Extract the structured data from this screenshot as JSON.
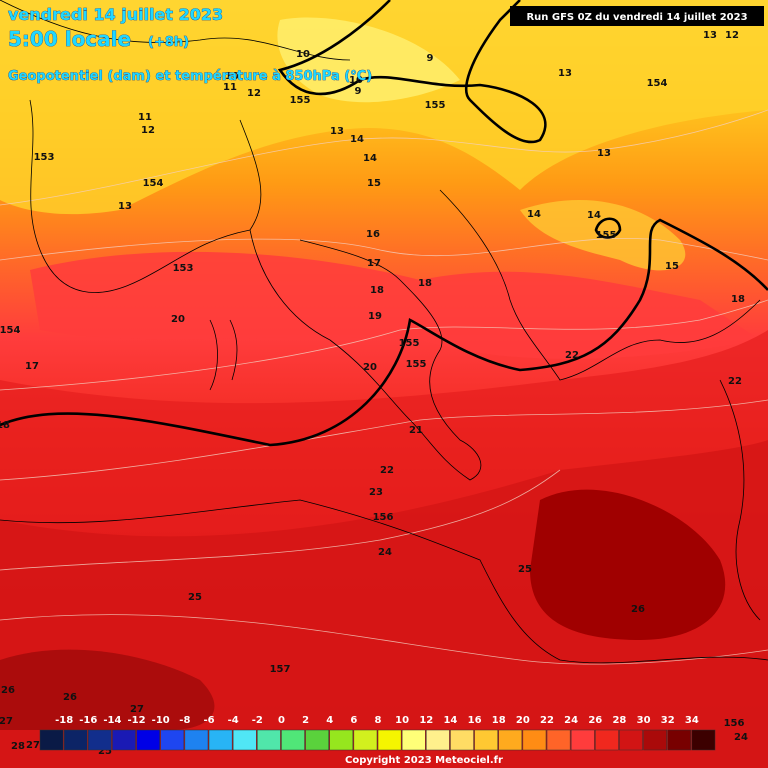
{
  "header": {
    "date": "vendredi 14 juillet 2023",
    "time": "5:00 locale",
    "offset": "(+8h)",
    "subtitle": "Geopotentiel (dam) et température à 850hPa (°C)",
    "run": "Run GFS 0Z du vendredi 14 juillet 2023"
  },
  "contour_labels": [
    "10",
    "9",
    "10",
    "9",
    "10",
    "11",
    "12",
    "155",
    "155",
    "13",
    "154",
    "13",
    "12",
    "11",
    "12",
    "153",
    "154",
    "13",
    "13",
    "14",
    "14",
    "15",
    "13",
    "14",
    "14",
    "155",
    "15",
    "16",
    "17",
    "18",
    "18",
    "19",
    "153",
    "20",
    "154",
    "17",
    "18",
    "155",
    "155",
    "20",
    "22",
    "22",
    "18",
    "21",
    "22",
    "23",
    "156",
    "24",
    "25",
    "25",
    "26",
    "157",
    "26",
    "26",
    "27",
    "27",
    "156",
    "24",
    "28",
    "27",
    "25"
  ],
  "legend": {
    "values": [
      "-18",
      "-16",
      "-14",
      "-12",
      "-10",
      "-8",
      "-6",
      "-4",
      "-2",
      "0",
      "2",
      "4",
      "6",
      "8",
      "10",
      "12",
      "14",
      "16",
      "18",
      "20",
      "22",
      "24",
      "26",
      "28",
      "30",
      "32",
      "34"
    ],
    "colors": [
      "#0a1a46",
      "#0c2466",
      "#122e8c",
      "#1a1ab4",
      "#0000e6",
      "#1e46f0",
      "#1e82f0",
      "#28b4f5",
      "#50e6f5",
      "#50e6aa",
      "#50e678",
      "#5ad23c",
      "#96e61e",
      "#d2f01e",
      "#f5f500",
      "#ffff78",
      "#fff08c",
      "#ffdc64",
      "#ffc832",
      "#ffaa1e",
      "#ff8c14",
      "#ff6428",
      "#ff3c3c",
      "#f0281e",
      "#d21414",
      "#aa0a0a",
      "#780000",
      "#3c0000"
    ]
  },
  "copyright": "Copyright 2023 Meteociel.fr"
}
